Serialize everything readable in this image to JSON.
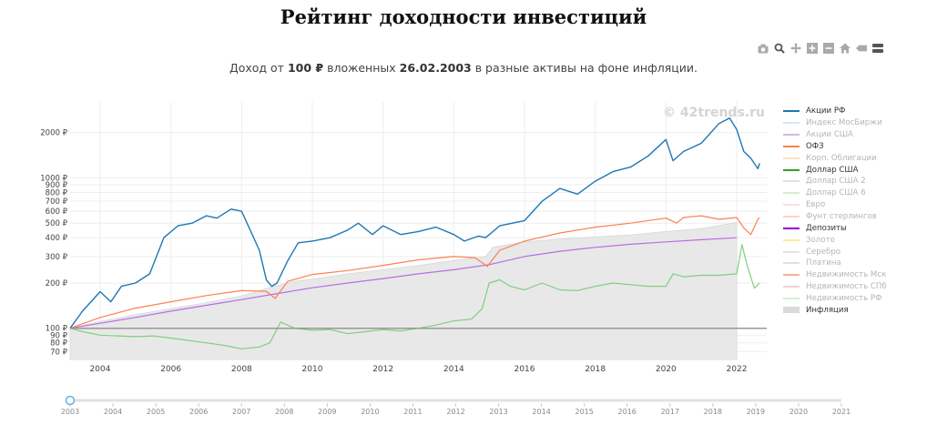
{
  "header": {
    "title": "Рейтинг доходности инвестиций",
    "subtitle_prefix": "Доход от",
    "amount": "100 ₽",
    "subtitle_middle": "вложенных",
    "date": "26.02.2003",
    "subtitle_suffix": "в разные активы на фоне инфляции."
  },
  "watermark": "© 42trends.ru",
  "toolbar": {
    "icons": [
      "camera-icon",
      "zoom-icon",
      "pan-icon",
      "zoom-in-icon",
      "zoom-out-icon",
      "home-icon",
      "hover-closest-icon",
      "hover-compare-icon"
    ]
  },
  "legend": {
    "items": [
      {
        "label": "Акции РФ",
        "color": "#1f77b4",
        "active": true
      },
      {
        "label": "Индекс МосБиржи",
        "color": "#aec7e8",
        "active": false
      },
      {
        "label": "Акции США",
        "color": "#9467bd",
        "active": false
      },
      {
        "label": "ОФЗ",
        "color": "#ff7f50",
        "active": true
      },
      {
        "label": "Корп. Облигации",
        "color": "#ffbb78",
        "active": false
      },
      {
        "label": "Доллар США",
        "color": "#2ca02c",
        "active": true
      },
      {
        "label": "Доллар США 2",
        "color": "#c5b0d5",
        "active": false
      },
      {
        "label": "Доллар США 6",
        "color": "#98df8a",
        "active": false
      },
      {
        "label": "Евро",
        "color": "#f7b6d2",
        "active": false
      },
      {
        "label": "Фунт стерлингов",
        "color": "#ff9896",
        "active": false
      },
      {
        "label": "Депозиты",
        "color": "#9400d3",
        "active": true
      },
      {
        "label": "Золото",
        "color": "#ffd700",
        "active": false
      },
      {
        "label": "Серебро",
        "color": "#c0c0c0",
        "active": false
      },
      {
        "label": "Платина",
        "color": "#bbbbbb",
        "active": false
      },
      {
        "label": "Недвижимость Мск",
        "color": "#e6550d",
        "active": false
      },
      {
        "label": "Недвижимость СПб",
        "color": "#dd99aa",
        "active": false
      },
      {
        "label": "Недвижимость РФ",
        "color": "#a1d99b",
        "active": false
      },
      {
        "label": "Инфляция",
        "color": "#d9d9d9",
        "active": true,
        "area": true
      }
    ]
  },
  "slider": {
    "years": [
      "2003",
      "2004",
      "2005",
      "2006",
      "2007",
      "2008",
      "2009",
      "2010",
      "2011",
      "2012",
      "2013",
      "2014",
      "2015",
      "2016",
      "2017",
      "2018",
      "2019",
      "2020",
      "2021"
    ],
    "value": "2003"
  },
  "chart_data": {
    "type": "line",
    "title": "Рейтинг доходности инвестиций",
    "xlabel": "",
    "ylabel": "",
    "y_scale": "log",
    "xlim": [
      2003.15,
      2022.85
    ],
    "ylim": [
      62,
      3200
    ],
    "x_ticks": [
      "2004",
      "2006",
      "2008",
      "2010",
      "2012",
      "2014",
      "2016",
      "2018",
      "2020",
      "2022"
    ],
    "y_ticks": [
      {
        "value": 70,
        "label": "70 ₽"
      },
      {
        "value": 80,
        "label": "80 ₽"
      },
      {
        "value": 90,
        "label": "90 ₽"
      },
      {
        "value": 100,
        "label": "100 ₽"
      },
      {
        "value": 200,
        "label": "200 ₽"
      },
      {
        "value": 300,
        "label": "300 ₽"
      },
      {
        "value": 400,
        "label": "400 ₽"
      },
      {
        "value": 500,
        "label": "500 ₽"
      },
      {
        "value": 600,
        "label": "600 ₽"
      },
      {
        "value": 700,
        "label": "700 ₽"
      },
      {
        "value": 800,
        "label": "800 ₽"
      },
      {
        "value": 900,
        "label": "900 ₽"
      },
      {
        "value": 1000,
        "label": "1000 ₽"
      },
      {
        "value": 2000,
        "label": "2000 ₽"
      }
    ],
    "reference_line": 100,
    "grid": true,
    "legend_position": "right",
    "series": [
      {
        "name": "Инфляция",
        "color": "#e8e8e8",
        "kind": "area",
        "x": [
          2003.15,
          2004,
          2005,
          2006,
          2007,
          2008,
          2008.9,
          2009.5,
          2010,
          2011,
          2012,
          2013,
          2014,
          2014.9,
          2015.1,
          2016,
          2017,
          2018,
          2019,
          2020,
          2021,
          2022,
          2022.0
        ],
        "y": [
          100,
          111,
          123,
          135,
          148,
          164,
          190,
          205,
          212,
          230,
          245,
          262,
          282,
          300,
          345,
          375,
          392,
          405,
          418,
          440,
          460,
          505,
          505
        ]
      },
      {
        "name": "Депозиты",
        "color": "#b86ee6",
        "kind": "line",
        "x": [
          2003.15,
          2004,
          2005,
          2006,
          2007,
          2008,
          2009,
          2010,
          2011,
          2012,
          2013,
          2014,
          2015,
          2016,
          2017,
          2018,
          2019,
          2020,
          2021,
          2022
        ],
        "y": [
          100,
          108,
          118,
          130,
          142,
          155,
          170,
          186,
          200,
          214,
          230,
          245,
          265,
          300,
          325,
          345,
          362,
          375,
          388,
          400
        ]
      },
      {
        "name": "ОФЗ",
        "color": "#ff7f50",
        "kind": "line",
        "x": [
          2003.15,
          2004,
          2005,
          2006,
          2007,
          2008,
          2008.7,
          2008.95,
          2009.3,
          2010,
          2011,
          2012,
          2013,
          2014,
          2014.6,
          2014.95,
          2015.3,
          2016,
          2017,
          2018,
          2019,
          2020,
          2020.3,
          2020.5,
          2021,
          2021.5,
          2022,
          2022.2,
          2022.4,
          2022.6,
          2022.65
        ],
        "y": [
          100,
          118,
          136,
          150,
          165,
          178,
          176,
          158,
          205,
          228,
          242,
          262,
          285,
          300,
          295,
          258,
          330,
          380,
          430,
          470,
          500,
          540,
          500,
          545,
          560,
          530,
          545,
          465,
          420,
          530,
          545
        ]
      },
      {
        "name": "Доллар США",
        "color": "#7fcf7f",
        "kind": "line",
        "x": [
          2003.15,
          2003.5,
          2004,
          2004.5,
          2005,
          2005.5,
          2006,
          2006.5,
          2007,
          2007.5,
          2008,
          2008.5,
          2008.8,
          2009.1,
          2009.5,
          2010,
          2010.5,
          2011,
          2011.5,
          2012,
          2012.5,
          2013,
          2013.5,
          2014,
          2014.5,
          2014.8,
          2015.0,
          2015.3,
          2015.6,
          2016,
          2016.5,
          2017,
          2017.5,
          2018,
          2018.5,
          2019,
          2019.5,
          2020,
          2020.2,
          2020.5,
          2021,
          2021.5,
          2022,
          2022.15,
          2022.3,
          2022.5,
          2022.65
        ],
        "y": [
          100,
          95,
          90,
          89,
          88,
          89,
          86,
          83,
          80,
          77,
          73,
          75,
          80,
          110,
          100,
          97,
          98,
          92,
          95,
          98,
          96,
          100,
          105,
          112,
          115,
          135,
          200,
          210,
          190,
          180,
          200,
          180,
          178,
          190,
          200,
          195,
          190,
          190,
          230,
          220,
          225,
          225,
          230,
          360,
          260,
          185,
          200
        ]
      },
      {
        "name": "Акции РФ",
        "color": "#1f77b4",
        "kind": "line",
        "x": [
          2003.15,
          2003.5,
          2004,
          2004.3,
          2004.6,
          2005,
          2005.4,
          2005.8,
          2006.2,
          2006.6,
          2007,
          2007.3,
          2007.7,
          2008,
          2008.3,
          2008.5,
          2008.7,
          2008.85,
          2009,
          2009.3,
          2009.6,
          2010,
          2010.5,
          2011,
          2011.3,
          2011.7,
          2012,
          2012.5,
          2013,
          2013.5,
          2014,
          2014.3,
          2014.7,
          2014.9,
          2015.3,
          2016,
          2016.5,
          2017,
          2017.5,
          2018,
          2018.5,
          2019,
          2019.5,
          2020,
          2020.2,
          2020.5,
          2021,
          2021.5,
          2021.8,
          2022.0,
          2022.2,
          2022.4,
          2022.6,
          2022.65
        ],
        "y": [
          100,
          130,
          175,
          150,
          190,
          200,
          230,
          400,
          480,
          500,
          560,
          540,
          620,
          600,
          420,
          330,
          210,
          190,
          200,
          280,
          370,
          380,
          400,
          450,
          500,
          420,
          480,
          420,
          440,
          470,
          420,
          380,
          410,
          400,
          480,
          520,
          700,
          850,
          780,
          950,
          1100,
          1180,
          1400,
          1800,
          1300,
          1500,
          1700,
          2300,
          2500,
          2100,
          1500,
          1350,
          1150,
          1250
        ]
      }
    ]
  }
}
